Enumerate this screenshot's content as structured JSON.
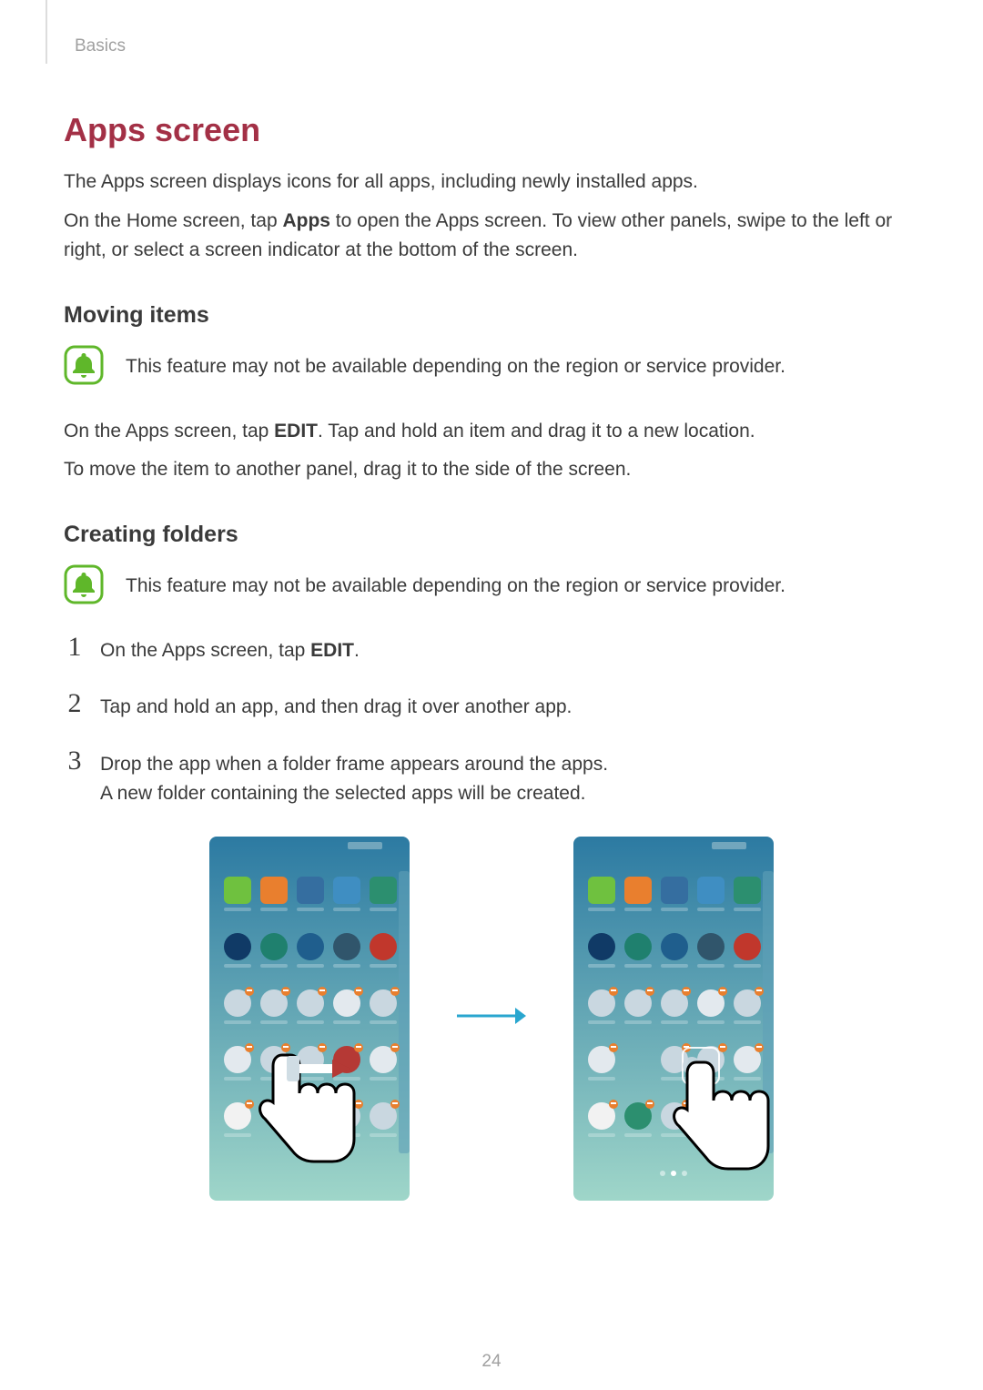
{
  "breadcrumb": "Basics",
  "page_number": "24",
  "accent_color": "#a33046",
  "h1": "Apps screen",
  "intro_paras": [
    {
      "plain": "The Apps screen displays icons for all apps, including newly installed apps."
    },
    {
      "pre": "On the Home screen, tap ",
      "bold": "Apps",
      "post": " to open the Apps screen. To view other panels, swipe to the left or right, or select a screen indicator at the bottom of the screen."
    }
  ],
  "section_moving": {
    "heading": "Moving items",
    "note": "This feature may not be available depending on the region or service provider.",
    "paras": [
      {
        "pre": "On the Apps screen, tap ",
        "bold": "EDIT",
        "post": ". Tap and hold an item and drag it to a new location."
      },
      {
        "plain": "To move the item to another panel, drag it to the side of the screen."
      }
    ]
  },
  "section_folders": {
    "heading": "Creating folders",
    "note": "This feature may not be available depending on the region or service provider.",
    "steps": [
      {
        "num": "1",
        "pre": "On the Apps screen, tap ",
        "bold": "EDIT",
        "post": "."
      },
      {
        "num": "2",
        "plain": "Tap and hold an app, and then drag it over another app."
      },
      {
        "num": "3",
        "plain": "Drop the app when a folder frame appears around the apps.",
        "extra": "A new folder containing the selected apps will be created."
      }
    ]
  },
  "note_icon": {
    "border_color": "#5fb72a",
    "fill_color": "#ffffff",
    "bell_color": "#5fb72a"
  },
  "arrow_color": "#29a6cf",
  "figure": {
    "gradient_top": "#2c7aa2",
    "gradient_bottom": "#9fd6c9",
    "peek_panel": "#5fa0b7",
    "icon_row_count": 5,
    "icon_cols": 5,
    "icon_colors_row1": [
      "#6fc13f",
      "#e97f2e",
      "#356ea0",
      "#3f8ec2",
      "#2c8f6f"
    ],
    "icon_colors_row2": [
      "#103a66",
      "#1f806e",
      "#1f5e8d",
      "#30556b",
      "#c1372c"
    ],
    "icon_colors_row3": [
      "#c9d7e0",
      "#c9d7e0",
      "#c9d7e0",
      "#e3e9ee",
      "#c9d7e0"
    ],
    "icon_colors_row4a": [
      "#e3e9ee",
      "#c9d7e0",
      "#c9d7e0",
      "#b53935",
      "#e3e9ee"
    ],
    "icon_colors_row4b": [
      "#e3e9ee",
      "",
      "#c9d7e0",
      "#c9d7e0",
      "#e3e9ee"
    ],
    "icon_colors_row5a": [
      "#f2f2f2",
      "",
      "#c9d7e0",
      "#c9d7e0",
      "#c9d7e0"
    ],
    "icon_colors_row5b": [
      "#f2f2f2",
      "#2c8f6f",
      "#c9d7e0",
      "#1f5e8d",
      "#c9d7e0"
    ],
    "badge_color": "#e97f2e",
    "page_dots": 3
  }
}
